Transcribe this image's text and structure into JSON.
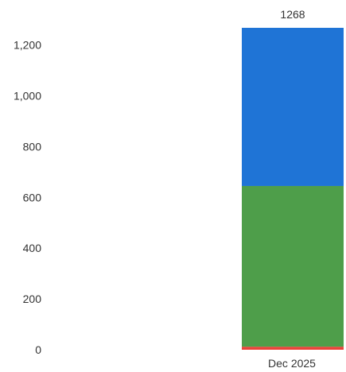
{
  "chart_data": {
    "type": "bar",
    "stacked": true,
    "categories": [
      "Dec 2025"
    ],
    "series": [
      {
        "values": [
          12
        ],
        "color": "#E8443A"
      },
      {
        "values": [
          633
        ],
        "color": "#4E9E4A"
      },
      {
        "values": [
          623
        ],
        "color": "#1F74D6"
      }
    ],
    "total_labels": [
      "1268"
    ],
    "y_ticks": [
      "0",
      "200",
      "400",
      "600",
      "800",
      "1,000",
      "1,200"
    ],
    "y_tick_values": [
      0,
      200,
      400,
      600,
      800,
      1000,
      1200
    ],
    "ylim": [
      0,
      1268
    ],
    "grid": false,
    "legend": "none"
  }
}
